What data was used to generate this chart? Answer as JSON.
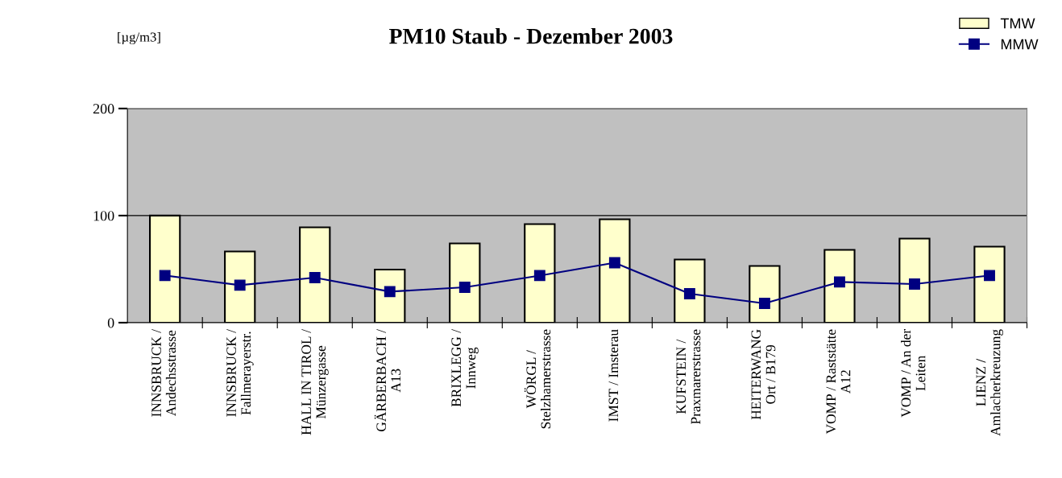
{
  "chart_data": {
    "type": "bar",
    "title": "PM10 Staub - Dezember 2003",
    "ylabel": "[µg/m3]",
    "categories": [
      "INNSBRUCK /\nAndechsstrasse",
      "INNSBRUCK /\nFallmerayerstr.",
      "HALL IN TIROL /\nMünzergasse",
      "GÄRBERBACH /\nA13",
      "BRIXLEGG /\nInnweg",
      "WÖRGL /\nStelzhamerstrasse",
      "IMST / Imsterau",
      "KUFSTEIN /\nPraxmarerstrasse",
      "HEITERWANG\nOrt / B179",
      "VOMP / Raststätte\nA12",
      "VOMP / An der\nLeiten",
      "LIENZ /\nAmlacherkreuzung"
    ],
    "series": [
      {
        "name": "TMW",
        "color": "#ffffcc",
        "values": [
          100,
          66.5,
          89,
          49.6,
          74,
          92,
          96.5,
          59,
          53,
          68,
          78.5,
          71
        ]
      },
      {
        "name": "MMW",
        "type": "line",
        "color": "#000080",
        "marker": "square",
        "values": [
          44,
          35,
          42,
          29,
          33,
          44,
          56,
          27,
          18,
          38,
          36,
          44
        ]
      }
    ],
    "ylim": [
      0,
      200
    ],
    "yticks": [
      0,
      100,
      200
    ],
    "grid": "y",
    "legend": "top right"
  }
}
